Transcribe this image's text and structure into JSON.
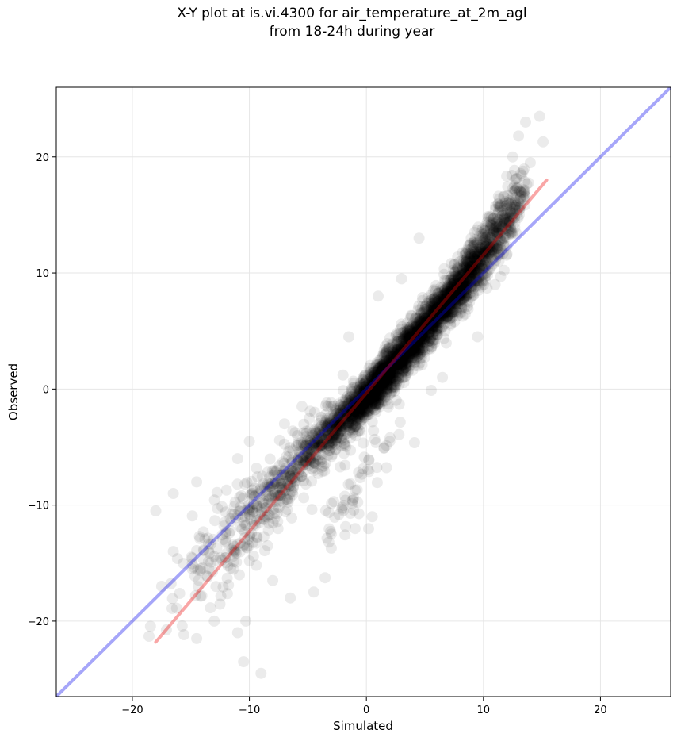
{
  "chart_data": {
    "type": "scatter",
    "title_line1": "X-Y plot at is.vi.4300 for air_temperature_at_2m_agl",
    "title_line2": "from 18-24h during year",
    "xlabel": "Simulated",
    "ylabel": "Observed",
    "xlim": [
      -26.5,
      26
    ],
    "ylim": [
      -26.5,
      26
    ],
    "xticks": [
      -20,
      -10,
      0,
      10,
      20
    ],
    "yticks": [
      -20,
      -10,
      0,
      10,
      20
    ],
    "xtick_labels": [
      "−20",
      "−10",
      "0",
      "10",
      "20"
    ],
    "ytick_labels": [
      "−20",
      "−10",
      "0",
      "10",
      "20"
    ],
    "grid": true,
    "point_color": "#000000",
    "point_alpha": 0.08,
    "series": [
      {
        "kind": "reference_line",
        "color": "#0000ee",
        "alpha": 0.35,
        "x": [
          -26.5,
          26
        ],
        "y": [
          -26.5,
          26
        ]
      },
      {
        "kind": "fit_line",
        "color": "#ee0000",
        "alpha": 0.35,
        "x": [
          -18,
          15.4
        ],
        "y": [
          -21.8,
          18
        ]
      }
    ],
    "clusters": [
      {
        "x": 0.5,
        "y": -0.2,
        "sx": 1.5,
        "sy": 1.8,
        "n": 900
      },
      {
        "x": 3.5,
        "y": 3.5,
        "sx": 1.6,
        "sy": 1.9,
        "n": 800
      },
      {
        "x": 6.5,
        "y": 7.0,
        "sx": 1.5,
        "sy": 1.8,
        "n": 700
      },
      {
        "x": 9.0,
        "y": 10.5,
        "sx": 1.5,
        "sy": 2.0,
        "n": 500
      },
      {
        "x": 11.5,
        "y": 14.0,
        "sx": 1.3,
        "sy": 2.3,
        "n": 260
      },
      {
        "x": -3.0,
        "y": -3.5,
        "sx": 1.6,
        "sy": 1.8,
        "n": 320
      },
      {
        "x": -6.0,
        "y": -7.0,
        "sx": 1.9,
        "sy": 2.6,
        "n": 220
      },
      {
        "x": -9.5,
        "y": -11.0,
        "sx": 2.3,
        "sy": 3.5,
        "n": 150
      },
      {
        "x": -13.5,
        "y": -14.0,
        "sx": 2.2,
        "sy": 3.3,
        "n": 70
      },
      {
        "x": -1.0,
        "y": -9.0,
        "sx": 2.0,
        "sy": 3.0,
        "n": 60
      }
    ],
    "outliers": [
      {
        "x": 14.8,
        "y": 23.5
      },
      {
        "x": 13.6,
        "y": 23.0
      },
      {
        "x": 15.1,
        "y": 21.3
      },
      {
        "x": 13.0,
        "y": 21.8
      },
      {
        "x": 14.0,
        "y": 19.5
      },
      {
        "x": 12.5,
        "y": 20.0
      },
      {
        "x": -18.0,
        "y": -10.5
      },
      {
        "x": -16.5,
        "y": -9.0
      },
      {
        "x": -17.5,
        "y": -17.0
      },
      {
        "x": -16.5,
        "y": -14.0
      },
      {
        "x": -14.5,
        "y": -21.5
      },
      {
        "x": -13.0,
        "y": -20.0
      },
      {
        "x": -9.0,
        "y": -24.5
      },
      {
        "x": -10.5,
        "y": -23.5
      },
      {
        "x": -10.3,
        "y": -20.0
      },
      {
        "x": -11.0,
        "y": -21.0
      },
      {
        "x": -14.5,
        "y": -8.0
      },
      {
        "x": -11.0,
        "y": -6.0
      },
      {
        "x": -10.0,
        "y": -4.5
      },
      {
        "x": -5.5,
        "y": -1.5
      },
      {
        "x": -7.0,
        "y": -3.0
      },
      {
        "x": -2.0,
        "y": 1.2
      },
      {
        "x": 2.0,
        "y": -4.5
      },
      {
        "x": 0.5,
        "y": -11.0
      },
      {
        "x": -3.0,
        "y": -12.5
      },
      {
        "x": -4.5,
        "y": -17.5
      },
      {
        "x": -6.5,
        "y": -18.0
      },
      {
        "x": -8.0,
        "y": -16.5
      },
      {
        "x": 4.5,
        "y": 13.0
      },
      {
        "x": 3.0,
        "y": 9.5
      },
      {
        "x": 6.5,
        "y": 1.0
      },
      {
        "x": 9.5,
        "y": 4.5
      },
      {
        "x": 11.0,
        "y": 9.0
      },
      {
        "x": 1.0,
        "y": 8.0
      },
      {
        "x": -1.5,
        "y": 4.5
      },
      {
        "x": 12.5,
        "y": 13.5
      }
    ]
  }
}
